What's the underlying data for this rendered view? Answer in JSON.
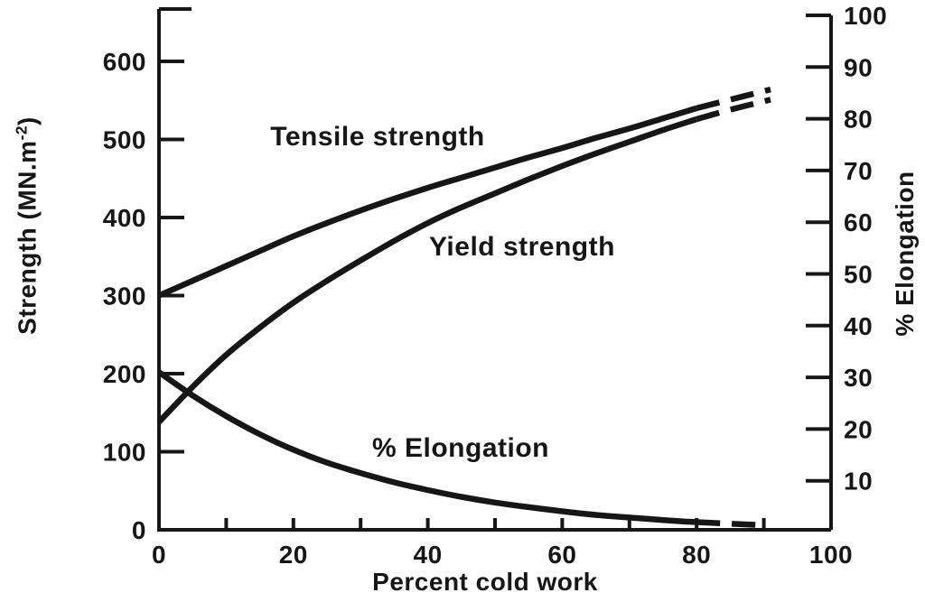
{
  "chart_data": {
    "type": "line",
    "title": "",
    "xlabel": "Percent cold work",
    "ylabel_left": {
      "prefix": "Strength (MN.m",
      "superscript": "-2",
      "suffix": ")"
    },
    "ylabel_right": "% Elongation",
    "line_color": "#161616",
    "background": "#ffffff",
    "grid": false,
    "axes": {
      "x": {
        "range": [
          0,
          100
        ],
        "ticks": [
          10,
          20,
          30,
          40,
          50,
          60,
          70,
          80,
          90
        ],
        "labeled": [
          0,
          20,
          40,
          60,
          80,
          100
        ]
      },
      "left": {
        "range": [
          0,
          600
        ],
        "ticks": [
          100,
          200,
          300,
          400,
          500,
          600
        ],
        "labeled": [
          0,
          100,
          200,
          300,
          400,
          500,
          600
        ]
      },
      "right": {
        "range": [
          0,
          100
        ],
        "ticks": [
          10,
          20,
          30,
          40,
          50,
          60,
          70,
          80,
          90,
          100
        ],
        "labeled": [
          10,
          20,
          30,
          40,
          50,
          60,
          70,
          80,
          90,
          100
        ]
      }
    },
    "series": [
      {
        "name": "Tensile strength",
        "axis": "left",
        "solid": [
          [
            0,
            300
          ],
          [
            5,
            319
          ],
          [
            10,
            338
          ],
          [
            15,
            357
          ],
          [
            20,
            376
          ],
          [
            25,
            393
          ],
          [
            30,
            409
          ],
          [
            35,
            424
          ],
          [
            40,
            438
          ],
          [
            45,
            451
          ],
          [
            50,
            464
          ],
          [
            55,
            477
          ],
          [
            60,
            489
          ],
          [
            65,
            502
          ],
          [
            70,
            514
          ],
          [
            75,
            527
          ],
          [
            80,
            540
          ]
        ],
        "dashed": [
          [
            80,
            540
          ],
          [
            85,
            551
          ],
          [
            91,
            564
          ]
        ]
      },
      {
        "name": "Yield strength",
        "axis": "left",
        "solid": [
          [
            0,
            138
          ],
          [
            5,
            183
          ],
          [
            10,
            224
          ],
          [
            15,
            259
          ],
          [
            20,
            291
          ],
          [
            25,
            319
          ],
          [
            30,
            345
          ],
          [
            35,
            370
          ],
          [
            40,
            393
          ],
          [
            45,
            413
          ],
          [
            50,
            431
          ],
          [
            55,
            449
          ],
          [
            60,
            466
          ],
          [
            65,
            482
          ],
          [
            70,
            497
          ],
          [
            75,
            512
          ],
          [
            80,
            526
          ]
        ],
        "dashed": [
          [
            80,
            526
          ],
          [
            85,
            538
          ],
          [
            91,
            551
          ]
        ]
      },
      {
        "name": "% Elongation",
        "axis": "right",
        "solid": [
          [
            0,
            31
          ],
          [
            5,
            26.5
          ],
          [
            10,
            22.5
          ],
          [
            15,
            19
          ],
          [
            20,
            16
          ],
          [
            25,
            13.5
          ],
          [
            30,
            11.5
          ],
          [
            35,
            9.7
          ],
          [
            40,
            8.2
          ],
          [
            45,
            6.9
          ],
          [
            50,
            5.8
          ],
          [
            55,
            4.9
          ],
          [
            60,
            4.1
          ],
          [
            65,
            3.4
          ],
          [
            70,
            2.9
          ],
          [
            75,
            2.4
          ],
          [
            80,
            2
          ]
        ],
        "dashed": [
          [
            80,
            2
          ],
          [
            85,
            1.7
          ],
          [
            90,
            1.4
          ]
        ]
      }
    ]
  }
}
